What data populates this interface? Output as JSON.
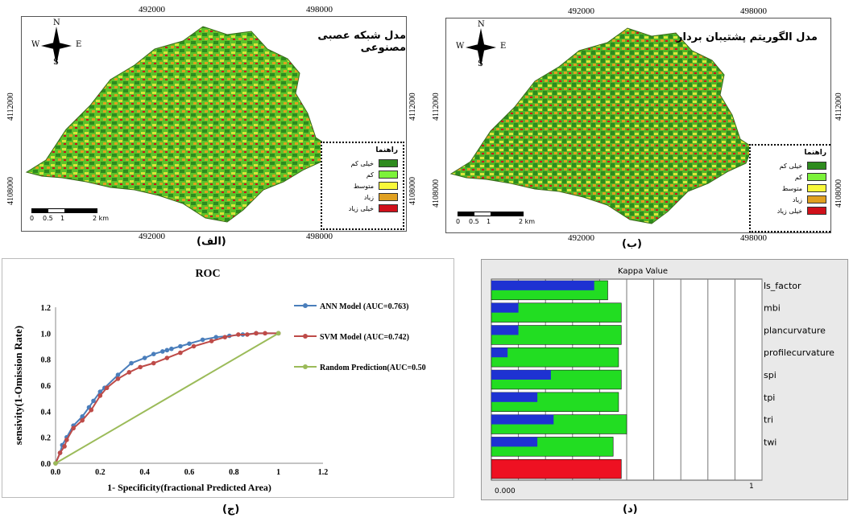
{
  "map_a": {
    "title": "مدل شبکه عصبی مصنوعی",
    "caption": "(الف)",
    "x_ticks": [
      "492000",
      "498000"
    ],
    "y_ticks": [
      "4112000",
      "4108000"
    ],
    "north_arrow": {
      "N": "N",
      "S": "S",
      "E": "E",
      "W": "W"
    },
    "scale": {
      "labels": [
        "0",
        "0.5",
        "1",
        "2 km"
      ]
    },
    "legend": {
      "title": "راهنما",
      "items": [
        {
          "label": "خیلی کم",
          "color": "#2e8b1e"
        },
        {
          "label": "کم",
          "color": "#7cf23a"
        },
        {
          "label": "متوسط",
          "color": "#f8f83a"
        },
        {
          "label": "زیاد",
          "color": "#e0a020"
        },
        {
          "label": "خیلی زیاد",
          "color": "#d0101a"
        }
      ]
    }
  },
  "map_b": {
    "title": "مدل الگوریتم پشتیبان بردار",
    "caption": "(ب)",
    "x_ticks": [
      "492000",
      "498000"
    ],
    "y_ticks": [
      "4112000",
      "4108000"
    ],
    "north_arrow": {
      "N": "N",
      "S": "S",
      "E": "E",
      "W": "W"
    },
    "scale": {
      "labels": [
        "0",
        "0.5",
        "1",
        "2 km"
      ]
    },
    "legend": {
      "title": "راهنما",
      "items": [
        {
          "label": "خیلی کم",
          "color": "#2e8b1e"
        },
        {
          "label": "کم",
          "color": "#7cf23a"
        },
        {
          "label": "متوسط",
          "color": "#f8f83a"
        },
        {
          "label": "زیاد",
          "color": "#e0a020"
        },
        {
          "label": "خیلی زیاد",
          "color": "#d0101a"
        }
      ]
    }
  },
  "captions": {
    "c": "(ج)",
    "d": "(د)"
  },
  "chart_data": [
    {
      "type": "line",
      "title": "ROC",
      "xlabel": "1- Specificity(fractional Predicted Area)",
      "ylabel": "sensivity(1-Omission Rate)",
      "xlim": [
        0,
        1.2
      ],
      "ylim": [
        0,
        1.2
      ],
      "x_ticks": [
        "0.0",
        "0.2",
        "0.4",
        "0.6",
        "0.8",
        "1",
        "1.2"
      ],
      "y_ticks": [
        "0.0",
        "0.2",
        "0.4",
        "0.6",
        "0.8",
        "1.0",
        "1.2"
      ],
      "legend_position": "right",
      "series": [
        {
          "name": "ANN Model (AUC=0.763)",
          "color": "#4a7ebb",
          "x": [
            0,
            0.02,
            0.03,
            0.05,
            0.08,
            0.12,
            0.15,
            0.17,
            0.2,
            0.22,
            0.28,
            0.34,
            0.4,
            0.44,
            0.48,
            0.5,
            0.52,
            0.56,
            0.6,
            0.66,
            0.72,
            0.78,
            0.84,
            0.9,
            1.0
          ],
          "y": [
            0,
            0.08,
            0.14,
            0.2,
            0.29,
            0.36,
            0.43,
            0.48,
            0.55,
            0.58,
            0.68,
            0.77,
            0.81,
            0.84,
            0.86,
            0.87,
            0.88,
            0.9,
            0.92,
            0.95,
            0.97,
            0.98,
            0.99,
            1.0,
            1.0
          ]
        },
        {
          "name": "SVM Model (AUC=0.742)",
          "color": "#be4b48",
          "x": [
            0,
            0.02,
            0.04,
            0.05,
            0.08,
            0.12,
            0.16,
            0.2,
            0.23,
            0.28,
            0.33,
            0.38,
            0.44,
            0.5,
            0.56,
            0.62,
            0.7,
            0.76,
            0.82,
            0.86,
            0.9,
            0.94,
            1.0
          ],
          "y": [
            0,
            0.08,
            0.13,
            0.18,
            0.27,
            0.33,
            0.41,
            0.52,
            0.58,
            0.65,
            0.7,
            0.74,
            0.77,
            0.81,
            0.85,
            0.9,
            0.94,
            0.97,
            0.99,
            0.99,
            1.0,
            1.0,
            1.0
          ]
        },
        {
          "name": "Random Prediction(AUC=0.50",
          "color": "#9bbb59",
          "x": [
            0,
            1
          ],
          "y": [
            0,
            1
          ]
        }
      ]
    },
    {
      "type": "bar",
      "title": "Kappa Value",
      "orientation": "horizontal",
      "xlim": [
        0,
        1
      ],
      "x_tick_labels": [
        "0.000",
        "1"
      ],
      "categories": [
        "ls_factor",
        "mbi",
        "plancurvature",
        "profilecurvature",
        "spi",
        "tpi",
        "tri",
        "twi",
        ""
      ],
      "series": [
        {
          "color": "#22dd22",
          "values": [
            0.43,
            0.48,
            0.48,
            0.47,
            0.48,
            0.47,
            0.5,
            0.45,
            0
          ]
        },
        {
          "color": "#1e32d2",
          "values": [
            0.38,
            0.1,
            0.1,
            0.06,
            0.22,
            0.17,
            0.23,
            0.17,
            0
          ]
        },
        {
          "color": "#ee1122",
          "values": [
            0,
            0,
            0,
            0,
            0,
            0,
            0,
            0,
            0.48
          ]
        }
      ]
    }
  ]
}
